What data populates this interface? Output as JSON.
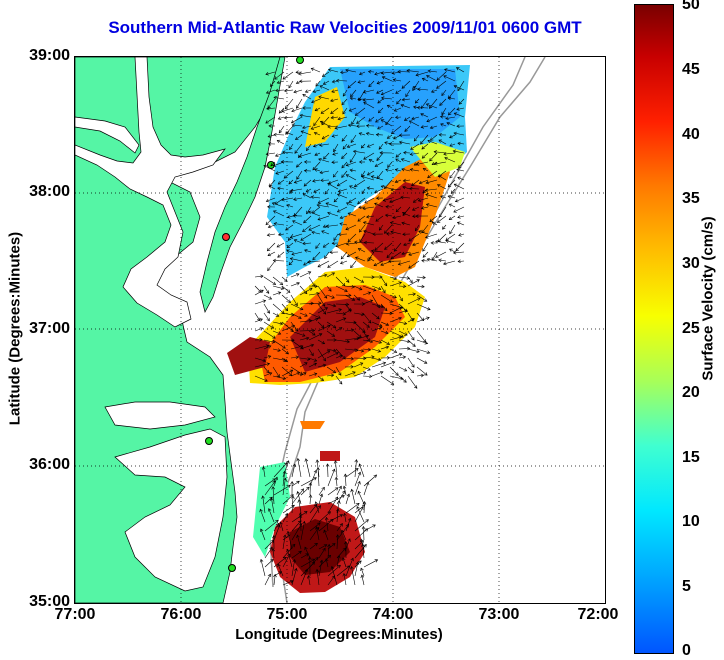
{
  "title": "Southern Mid-Atlantic Raw Velocities 2009/11/01 0600 GMT",
  "axes": {
    "xlabel": "Longitude (Degrees:Minutes)",
    "ylabel": "Latitude (Degrees:Minutes)",
    "xticks": [
      "77:00",
      "76:00",
      "75:00",
      "74:00",
      "73:00",
      "72:00"
    ],
    "yticks": [
      "39:00",
      "38:00",
      "37:00",
      "36:00",
      "35:00"
    ],
    "xlim": [
      -77,
      -72
    ],
    "ylim": [
      35,
      39
    ],
    "grid": true
  },
  "colorbar": {
    "label": "Surface Velocity (cm/s)",
    "ticks": [
      "50",
      "45",
      "40",
      "35",
      "30",
      "25",
      "20",
      "15",
      "10",
      "5",
      "0"
    ],
    "range": [
      0,
      50
    ],
    "colors": [
      "#0055ff",
      "#00a8ff",
      "#00e8ff",
      "#40ffd0",
      "#a8ff58",
      "#f8ff00",
      "#ffbe00",
      "#ff7a00",
      "#ff2000",
      "#c80000",
      "#7a0000"
    ]
  },
  "colors": {
    "title": "#0000e0",
    "land": "#55f5a5",
    "isobath": "#999999",
    "grid": "#000000"
  }
}
